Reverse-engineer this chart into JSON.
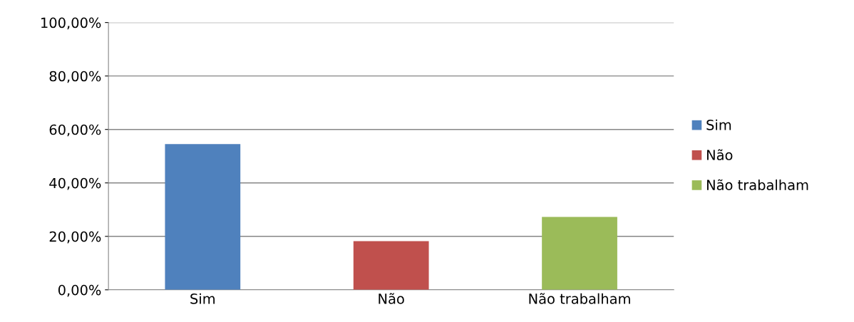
{
  "chart_data": {
    "type": "bar",
    "categories": [
      "Sim",
      "Não",
      "Não trabalham"
    ],
    "series": [
      {
        "name": "Sim",
        "color": "#4f81bd",
        "values": [
          54.5,
          null,
          null
        ]
      },
      {
        "name": "Não",
        "color": "#c0504d",
        "values": [
          null,
          18.2,
          null
        ]
      },
      {
        "name": "Não trabalham",
        "color": "#9bbb59",
        "values": [
          null,
          null,
          27.3
        ]
      }
    ],
    "ylim": [
      0,
      100
    ],
    "yticks": [
      {
        "value": 0,
        "label": "0,00%"
      },
      {
        "value": 20,
        "label": "20,00%"
      },
      {
        "value": 40,
        "label": "40,00%"
      },
      {
        "value": 60,
        "label": "60,00%"
      },
      {
        "value": 80,
        "label": "80,00%"
      },
      {
        "value": 100,
        "label": "100,00%"
      }
    ],
    "grid": "y",
    "legend": "right"
  }
}
